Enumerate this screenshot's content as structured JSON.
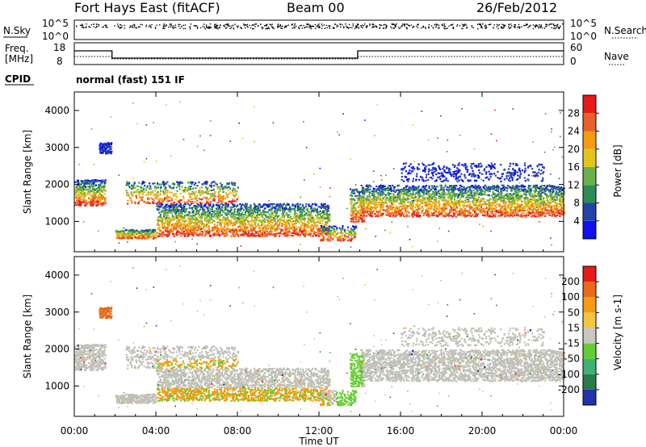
{
  "header": {
    "radar": "Fort Hays East (fitACF)",
    "beam": "Beam 00",
    "date": "26/Feb/2012"
  },
  "top_panels": {
    "nsky_label": "N.Sky",
    "nsearch_label": "N.Search",
    "nsky_ticks": [
      "10^5",
      "10^0"
    ],
    "nsearch_ticks": [
      "10^5",
      "10^0"
    ],
    "freq_label": "Freq.",
    "freq_unit": "[MHz]",
    "freq_ticks": [
      "18",
      "8"
    ],
    "nave_label": "Nave",
    "nave_ticks": [
      "60",
      "0"
    ],
    "cpid_label": "CPID",
    "cpid_value": "normal (fast) 151 IF"
  },
  "chart_data": [
    {
      "type": "heatmap",
      "name": "power-panel",
      "ylabel": "Slant Range [km]",
      "x_ticks": [
        "00:00",
        "04:00",
        "08:00",
        "12:00",
        "16:00",
        "20:00",
        "00:00"
      ],
      "y_ticks": [
        "1000",
        "2000",
        "3000",
        "4000"
      ],
      "xlim_hours": [
        0,
        24
      ],
      "ylim_km": [
        180,
        4500
      ],
      "colorbar": {
        "label": "Power [dB]",
        "ticks": [
          "4",
          "8",
          "12",
          "16",
          "20",
          "24",
          "28"
        ],
        "colors": [
          "#1010ee",
          "#2244aa",
          "#2e8b57",
          "#6ab04c",
          "#e3c51a",
          "#f39c12",
          "#e8612c",
          "#e81a1a"
        ]
      }
    },
    {
      "type": "heatmap",
      "name": "velocity-panel",
      "ylabel": "Slant Range [km]",
      "xlabel": "Time UT",
      "x_ticks": [
        "00:00",
        "04:00",
        "08:00",
        "12:00",
        "16:00",
        "20:00",
        "00:00"
      ],
      "y_ticks": [
        "1000",
        "2000",
        "3000",
        "4000"
      ],
      "xlim_hours": [
        0,
        24
      ],
      "ylim_km": [
        180,
        4500
      ],
      "colorbar": {
        "label": "Velocity [m s-1]",
        "ticks": [
          "200",
          "100",
          "50",
          "15",
          "-15",
          "-50",
          "-100",
          "-200"
        ],
        "colors": [
          "#2233aa",
          "#2a7a4a",
          "#3cb371",
          "#66cc33",
          "#c8c8c0",
          "#f5c542",
          "#f39c12",
          "#e86a1a",
          "#e81a1a"
        ]
      }
    }
  ],
  "colors": {
    "ground_scatter": "#c0c0b8",
    "frame": "#000000"
  }
}
